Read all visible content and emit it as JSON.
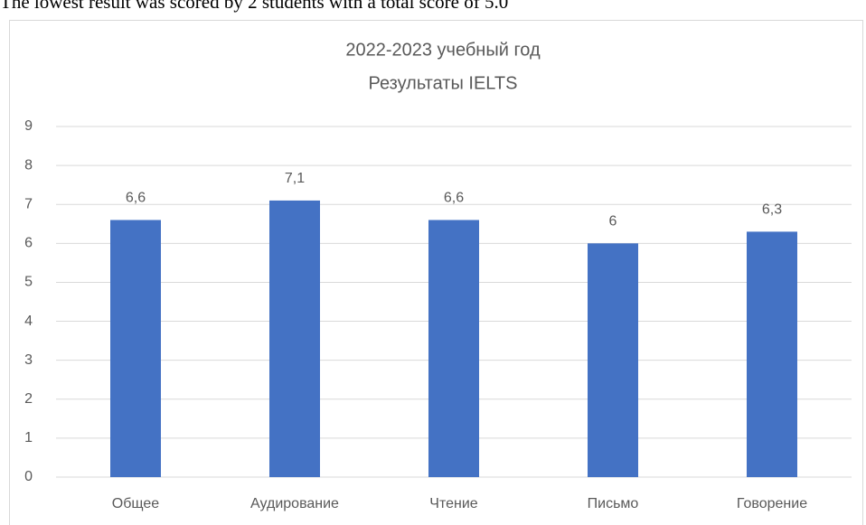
{
  "text": "The lowest result was scored by 2 students with a total score of 5.0",
  "chart_data": {
    "type": "bar",
    "title": "2022-2023 учебный год",
    "subtitle": "Результаты IELTS",
    "categories": [
      "Общее",
      "Аудирование",
      "Чтение",
      "Письмо",
      "Говорение"
    ],
    "values": [
      6.6,
      7.1,
      6.6,
      6,
      6.3
    ],
    "value_labels": [
      "6,6",
      "7,1",
      "6,6",
      "6",
      "6,3"
    ],
    "color": "#4472c4",
    "ylim": [
      0,
      9
    ],
    "yticks": [
      0,
      1,
      2,
      3,
      4,
      5,
      6,
      7,
      8,
      9
    ],
    "grid": true
  }
}
